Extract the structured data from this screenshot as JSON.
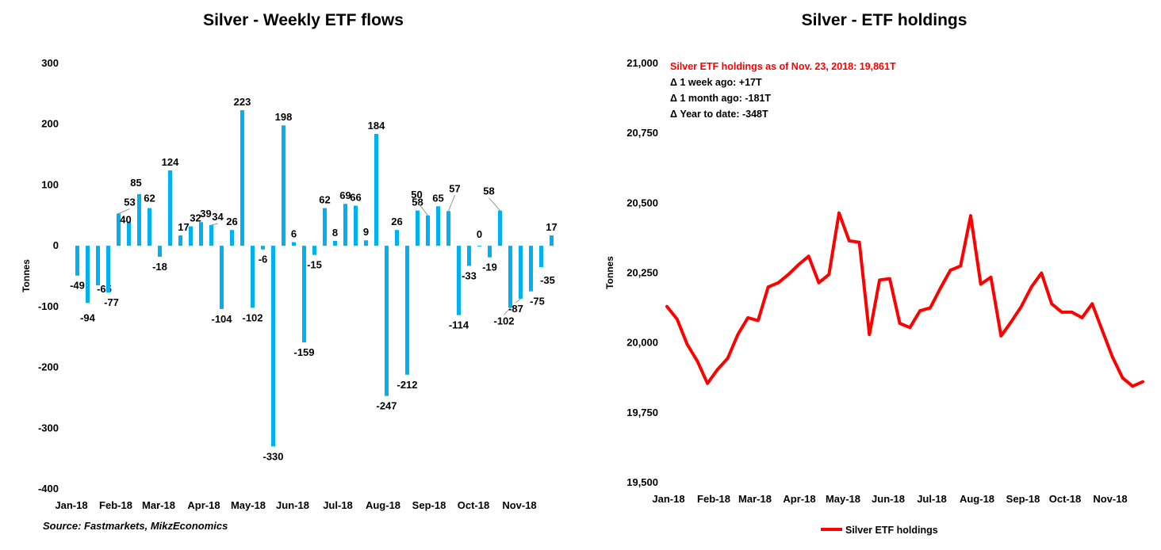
{
  "left_title": "Silver - Weekly ETF flows",
  "right_title": "Silver - ETF holdings",
  "source": "Source: Fastmarkets, MikzEconomics",
  "chart_data": [
    {
      "type": "bar",
      "title": "Silver - Weekly ETF flows",
      "ylabel": "Tonnes",
      "ylim": [
        -400,
        300
      ],
      "yticks": [
        300,
        200,
        100,
        0,
        -100,
        -200,
        -300,
        -400
      ],
      "xticks": [
        "Jan-18",
        "Feb-18",
        "Mar-18",
        "Apr-18",
        "May-18",
        "Jun-18",
        "Jul-18",
        "Aug-18",
        "Sep-18",
        "Oct-18",
        "Nov-18"
      ],
      "values": [
        -49,
        -94,
        -65,
        -77,
        53,
        40,
        85,
        62,
        -18,
        124,
        17,
        32,
        39,
        34,
        -104,
        26,
        223,
        -102,
        -6,
        -330,
        198,
        6,
        -159,
        -15,
        62,
        8,
        69,
        66,
        9,
        184,
        -247,
        26,
        -212,
        58,
        50,
        65,
        57,
        -114,
        -33,
        0,
        -19,
        58,
        -102,
        -87,
        -75,
        -35,
        17
      ],
      "color": "#00b0f0"
    },
    {
      "type": "line",
      "title": "Silver - ETF holdings",
      "ylabel": "Tonnes",
      "ylim": [
        19500,
        21000
      ],
      "yticks": [
        "21,000",
        "20,750",
        "20,500",
        "20,250",
        "20,000",
        "19,750",
        "19,500"
      ],
      "ytick_values": [
        21000,
        20750,
        20500,
        20250,
        20000,
        19750,
        19500
      ],
      "xticks": [
        "Jan-18",
        "Feb-18",
        "Mar-18",
        "Apr-18",
        "May-18",
        "Jun-18",
        "Jul-18",
        "Aug-18",
        "Sep-18",
        "Oct-18",
        "Nov-18"
      ],
      "series": [
        {
          "name": "Silver ETF holdings",
          "color": "#ff0000",
          "values": [
            20130,
            20085,
            19995,
            19935,
            19855,
            19905,
            19945,
            20030,
            20090,
            20080,
            20200,
            20215,
            20245,
            20280,
            20310,
            20215,
            20245,
            20465,
            20365,
            20360,
            20030,
            20225,
            20230,
            20070,
            20055,
            20115,
            20125,
            20195,
            20260,
            20275,
            20455,
            20210,
            20235,
            20025,
            20075,
            20130,
            20200,
            20250,
            20140,
            20110,
            20110,
            20090,
            20140,
            20045,
            19950,
            19875,
            19845,
            19861
          ]
        }
      ],
      "annotation": {
        "headline": "Silver ETF holdings as of Nov. 23, 2018: 19,861T",
        "lines": [
          "Δ 1 week ago: +17T",
          "Δ 1 month ago: -181T",
          "Δ Year to date: -348T"
        ]
      },
      "legend": "bottom-center"
    }
  ]
}
